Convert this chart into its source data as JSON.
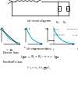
{
  "bg_color": "#ffffff",
  "circuit_label": "(a) circuit diagram",
  "char_label": "(b) characteristics",
  "electric_laws_label": "Electric laws",
  "kirchhoff_label": "Kirchhoff's laws",
  "curve_color": "#00aacc",
  "black": "#000000",
  "gray": "#888888"
}
